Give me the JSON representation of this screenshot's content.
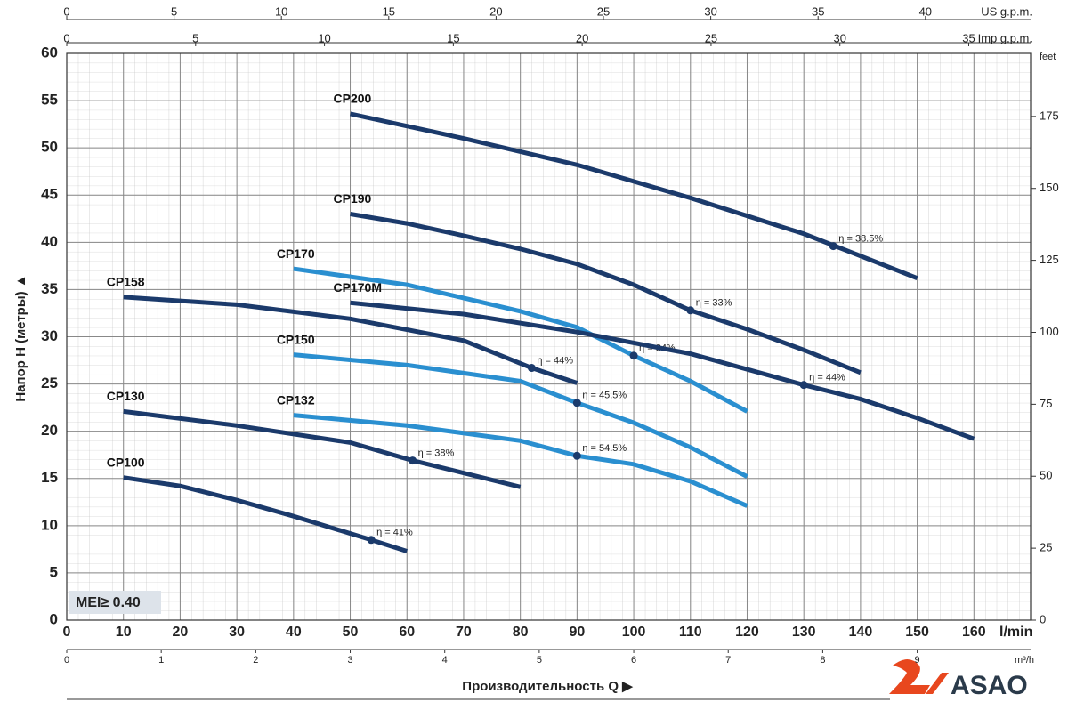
{
  "chart_data": {
    "type": "line",
    "y_label": "Напор H (метры) ▲",
    "x_label": "Производительность Q ▶",
    "x_unit": "l/min",
    "xlim": [
      0,
      170
    ],
    "xticks": [
      0,
      10,
      20,
      30,
      40,
      50,
      60,
      70,
      80,
      90,
      100,
      110,
      120,
      130,
      140,
      150,
      160
    ],
    "ylim": [
      0,
      60
    ],
    "yticks": [
      0,
      5,
      10,
      15,
      20,
      25,
      30,
      35,
      40,
      45,
      50,
      55,
      60
    ],
    "grid": true,
    "top_axes": [
      {
        "unit": "US g.p.m.",
        "lim": [
          0,
          44.9
        ],
        "ticks": [
          0,
          5,
          10,
          15,
          20,
          25,
          30,
          35,
          40
        ]
      },
      {
        "unit": "Imp g.p.m.",
        "lim": [
          0,
          37.4
        ],
        "ticks": [
          0,
          5,
          10,
          15,
          20,
          25,
          30,
          35
        ]
      }
    ],
    "bottom_axis2": {
      "unit": "m³/h",
      "lim": [
        0,
        10.2
      ],
      "ticks": [
        0,
        1,
        2,
        3,
        4,
        5,
        6,
        7,
        8,
        9
      ]
    },
    "right_axis": {
      "unit": "feet",
      "lim": [
        0,
        196.9
      ],
      "ticks": [
        0,
        25,
        50,
        75,
        100,
        125,
        150,
        175
      ]
    },
    "badge": "MEI≥ 0.40",
    "series": [
      {
        "name": "CP200",
        "color": "#1b3a6b",
        "x": [
          50,
          70,
          90,
          110,
          130,
          150
        ],
        "values": [
          53.6,
          51.0,
          48.2,
          44.7,
          40.9,
          36.2
        ],
        "bep": {
          "x": 135.2,
          "y": 39.6,
          "label": "η = 38.5%"
        }
      },
      {
        "name": "CP190",
        "color": "#1b3a6b",
        "x": [
          50,
          60,
          70,
          80,
          90,
          100,
          110,
          120,
          130,
          140
        ],
        "values": [
          43.0,
          42.0,
          40.7,
          39.3,
          37.7,
          35.5,
          32.8,
          30.8,
          28.6,
          26.2
        ],
        "bep": {
          "x": 110,
          "y": 32.8,
          "label": "η = 33%"
        }
      },
      {
        "name": "CP170",
        "color": "#2a8fd0",
        "x": [
          40,
          60,
          80,
          90,
          100,
          110,
          120
        ],
        "values": [
          37.2,
          35.5,
          32.7,
          31.0,
          28.0,
          25.3,
          22.1
        ],
        "bep": {
          "x": 100,
          "y": 28.0,
          "label": "η = 34%"
        }
      },
      {
        "name": "CP170M",
        "color": "#1b3a6b",
        "x": [
          50,
          70,
          90,
          110,
          130,
          140,
          150,
          160
        ],
        "values": [
          33.6,
          32.4,
          30.5,
          28.2,
          24.9,
          23.4,
          21.4,
          19.2
        ],
        "bep": {
          "x": 130,
          "y": 24.9,
          "label": "η = 44%"
        }
      },
      {
        "name": "CP158",
        "color": "#1b3a6b",
        "x": [
          10,
          30,
          50,
          70,
          82,
          90
        ],
        "values": [
          34.2,
          33.4,
          31.9,
          29.6,
          26.7,
          25.1
        ],
        "bep": {
          "x": 82,
          "y": 26.7,
          "label": "η = 44%"
        }
      },
      {
        "name": "CP150",
        "color": "#2a8fd0",
        "x": [
          40,
          60,
          80,
          90,
          100,
          110,
          120
        ],
        "values": [
          28.1,
          27.0,
          25.3,
          23.0,
          20.9,
          18.3,
          15.2
        ],
        "bep": {
          "x": 90,
          "y": 23.0,
          "label": "η = 45.5%"
        }
      },
      {
        "name": "CP132",
        "color": "#2a8fd0",
        "x": [
          40,
          60,
          80,
          90,
          100,
          110,
          120
        ],
        "values": [
          21.7,
          20.6,
          19.0,
          17.4,
          16.5,
          14.7,
          12.1
        ],
        "bep": {
          "x": 90,
          "y": 17.4,
          "label": "η = 54.5%"
        }
      },
      {
        "name": "CP130",
        "color": "#1b3a6b",
        "x": [
          10,
          30,
          50,
          61,
          80
        ],
        "values": [
          22.1,
          20.6,
          18.8,
          16.9,
          14.1
        ],
        "bep": {
          "x": 61,
          "y": 16.9,
          "label": "η = 38%"
        }
      },
      {
        "name": "CP100",
        "color": "#1b3a6b",
        "x": [
          10,
          20,
          30,
          40,
          53.7,
          60
        ],
        "values": [
          15.1,
          14.2,
          12.7,
          11.0,
          8.5,
          7.3
        ],
        "bep": {
          "x": 53.7,
          "y": 8.5,
          "label": "η = 41%"
        }
      }
    ]
  },
  "brand": "ASAO"
}
